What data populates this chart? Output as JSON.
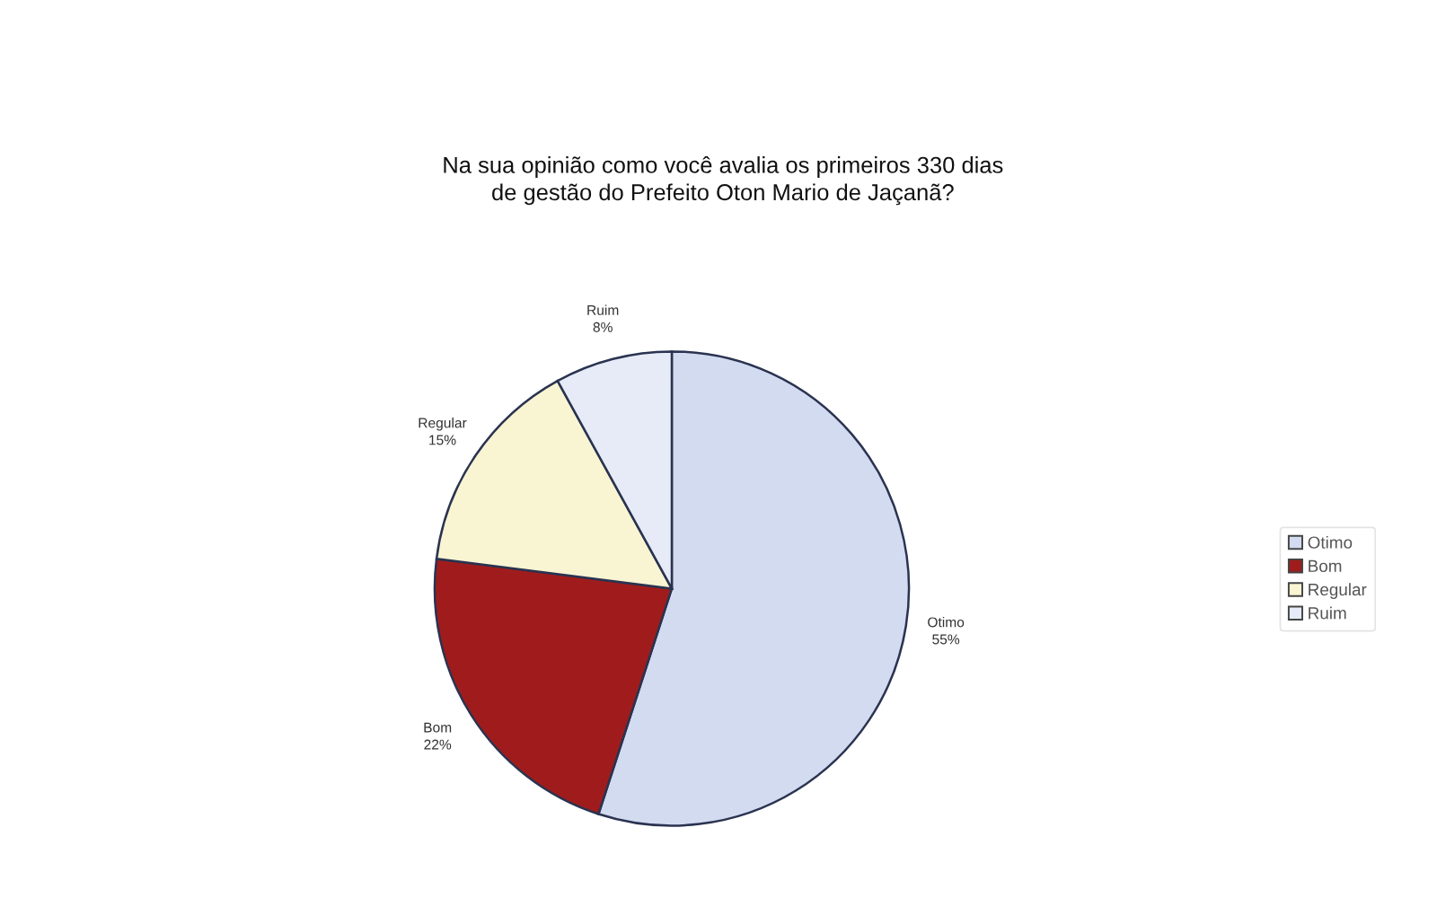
{
  "chart_data": {
    "type": "pie",
    "title": "Na sua opinião como você avalia os primeiros 330 dias\nde gestão do Prefeito Oton Mario de Jaçanã?",
    "categories": [
      "Otimo",
      "Bom",
      "Regular",
      "Ruim"
    ],
    "values": [
      55,
      22,
      15,
      8
    ],
    "value_labels": [
      "55%",
      "22%",
      "15%",
      "8%"
    ],
    "colors": [
      "#d3dbf1",
      "#a01c1c",
      "#f9f4d2",
      "#e6ebf7"
    ],
    "legend": "right"
  }
}
